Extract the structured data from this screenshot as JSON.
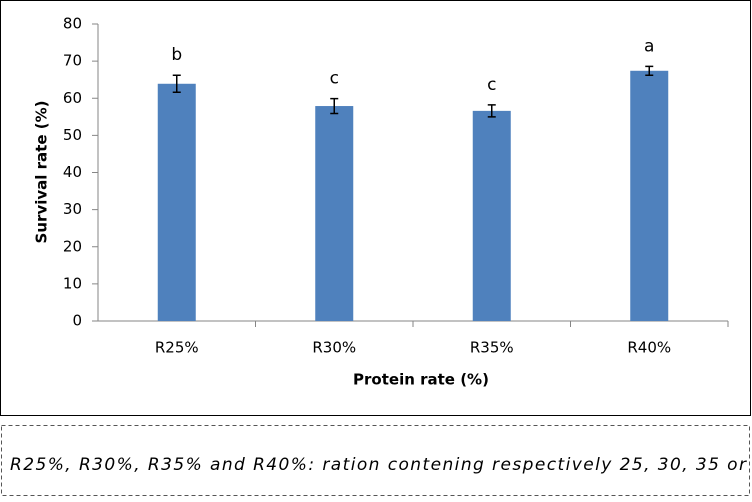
{
  "chart_data": {
    "type": "bar",
    "x_label": "Protein rate (%)",
    "y_label": "Survival rate (%)",
    "categories": [
      "R25%",
      "R30%",
      "R35%",
      "R40%"
    ],
    "values": [
      63.9,
      57.9,
      56.6,
      67.4
    ],
    "errors": [
      2.3,
      2.0,
      1.6,
      1.2
    ],
    "labels": [
      "b",
      "c",
      "c",
      "a"
    ],
    "color": "#4f81bd",
    "ylim": [
      0,
      80
    ],
    "yticks": [
      0,
      10,
      20,
      30,
      40,
      50,
      60,
      70,
      80
    ],
    "grid": false
  },
  "caption": "R25%, R30%, R35% and R40%: ration contening respectively 25, 30, 35 or"
}
